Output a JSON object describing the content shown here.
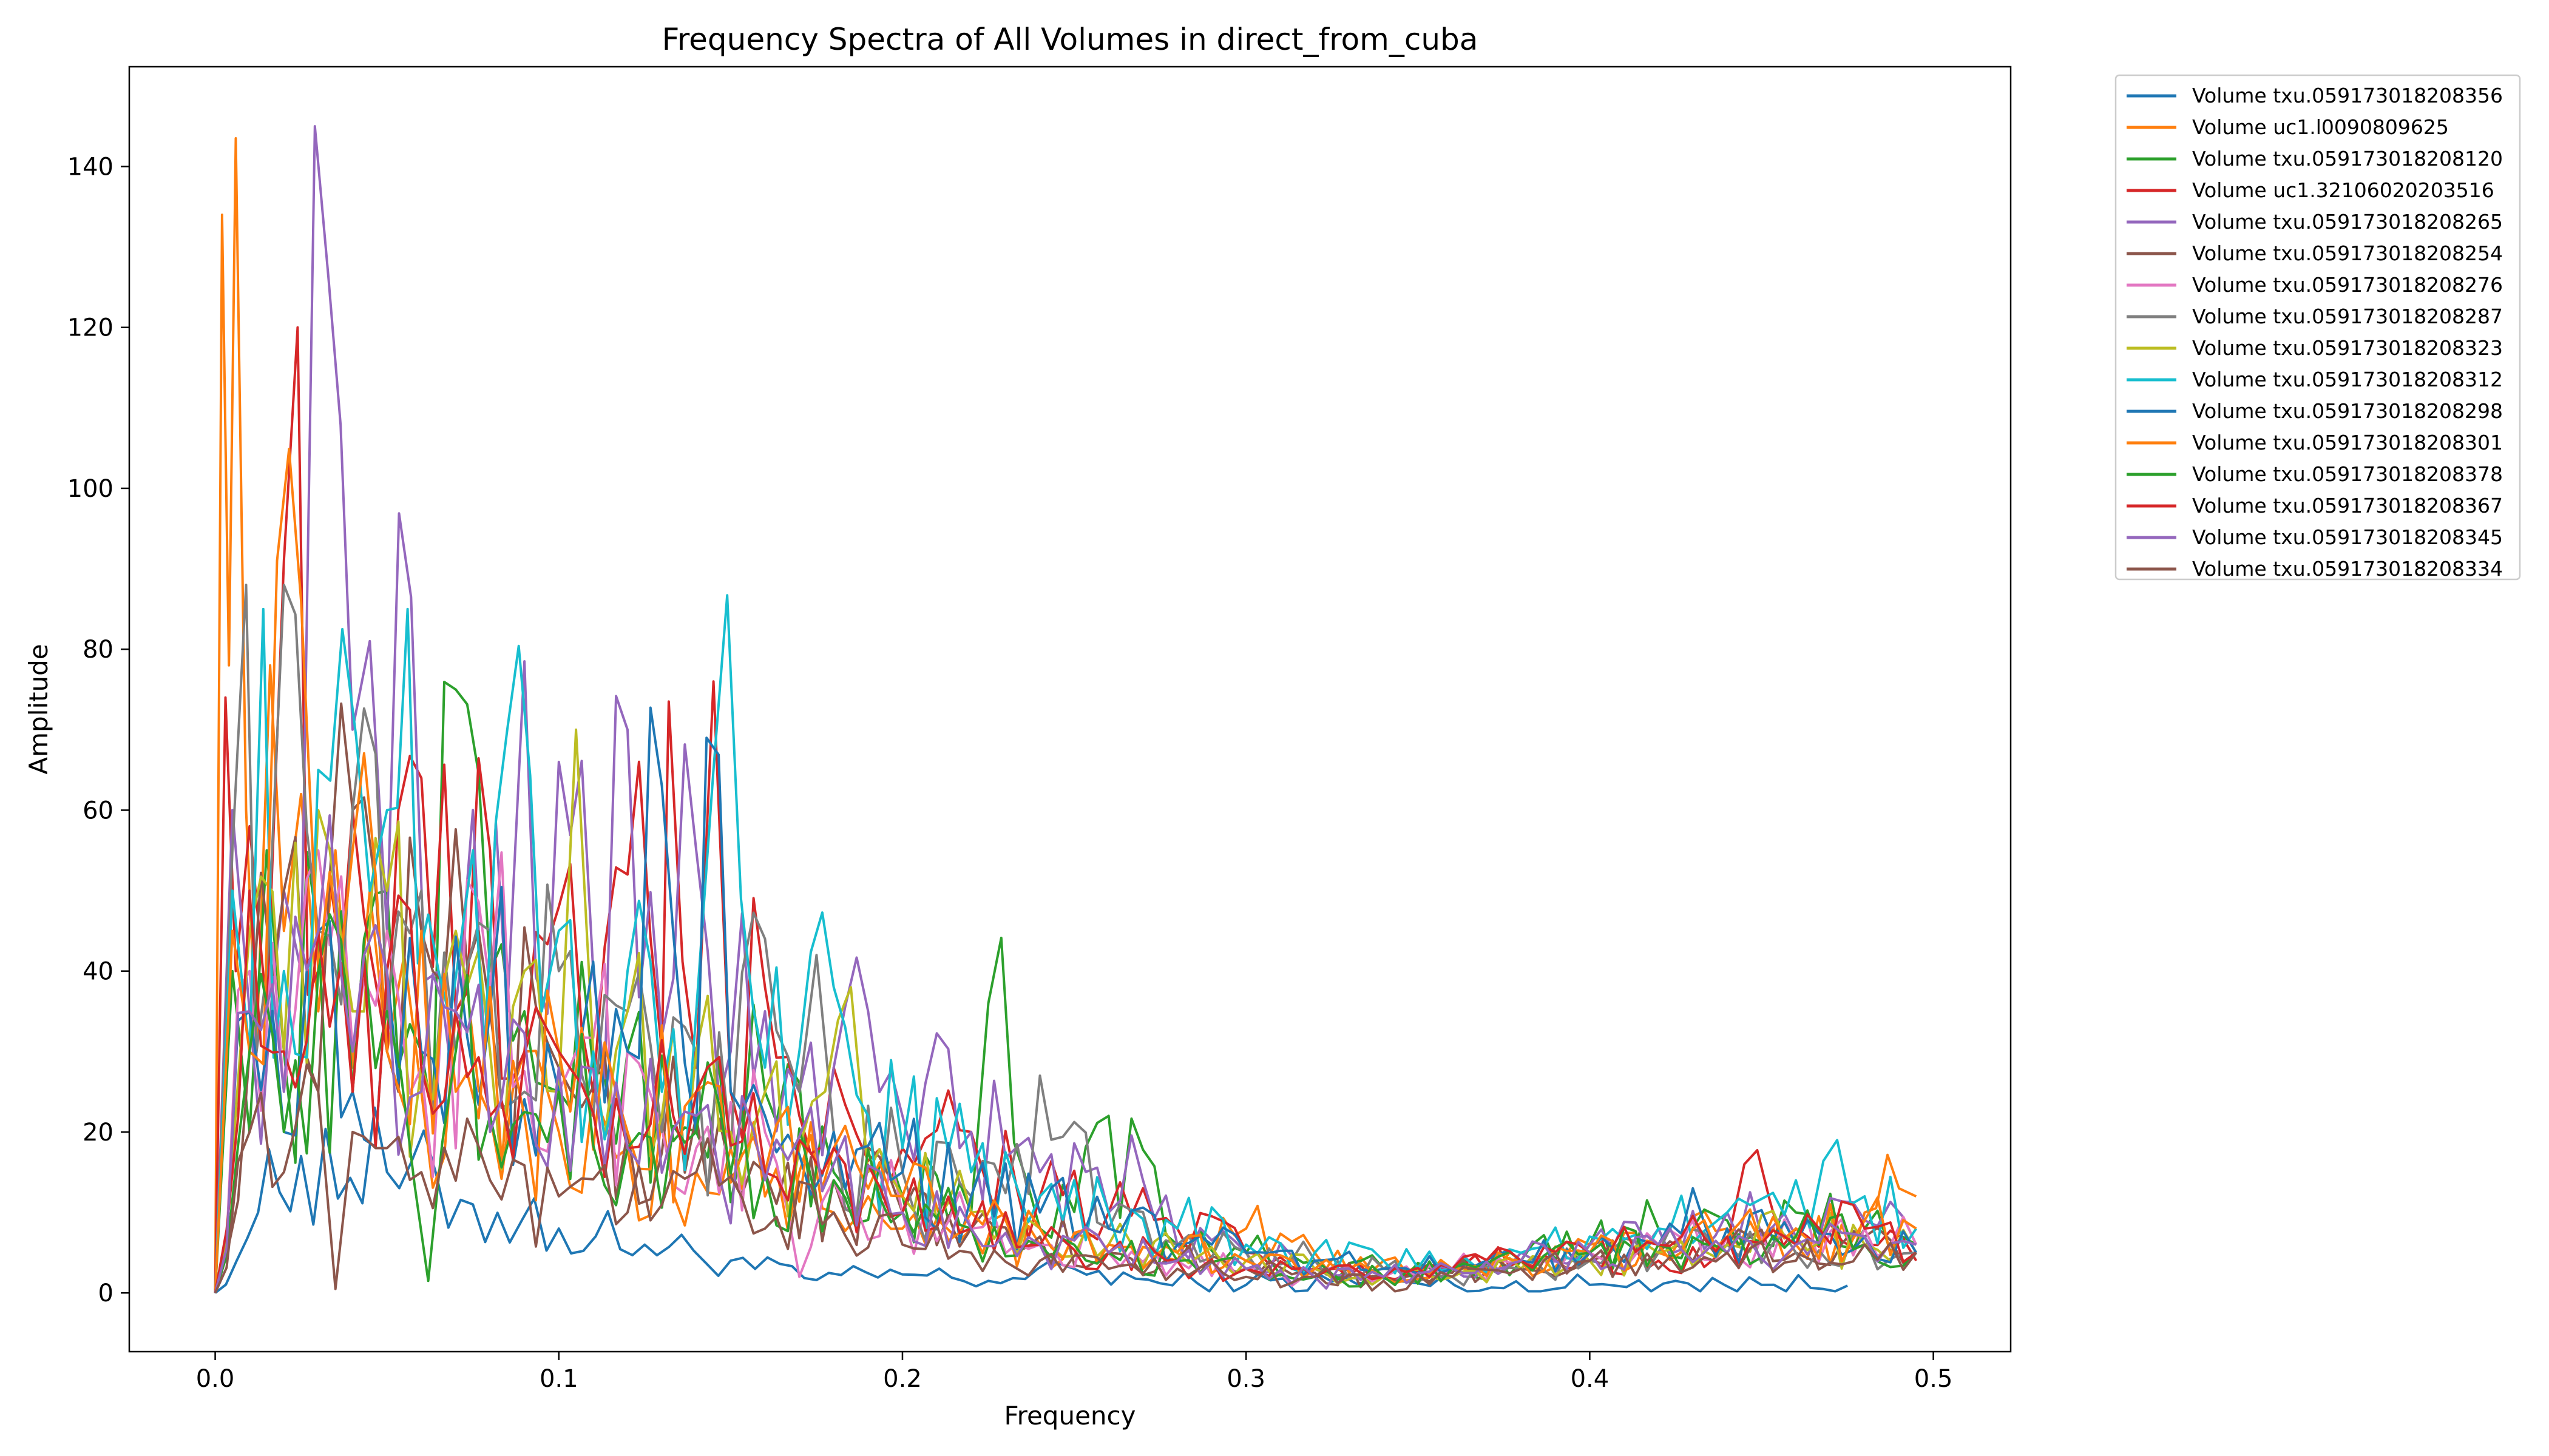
{
  "chart_data": {
    "type": "line",
    "title": "Frequency Spectra of All Volumes in direct_from_cuba",
    "xlabel": "Frequency",
    "ylabel": "Amplitude",
    "xlim": [
      -0.025,
      0.5225
    ],
    "ylim": [
      -7.3,
      152.4
    ],
    "x_ticks": [
      0.0,
      0.1,
      0.2,
      0.3,
      0.4,
      0.5
    ],
    "x_tick_labels": [
      "0.0",
      "0.1",
      "0.2",
      "0.3",
      "0.4",
      "0.5"
    ],
    "y_ticks": [
      0,
      20,
      40,
      60,
      80,
      100,
      120,
      140
    ],
    "y_tick_labels": [
      "0",
      "20",
      "40",
      "60",
      "80",
      "100",
      "120",
      "140"
    ],
    "grid": false,
    "legend_position": "outside-top-right",
    "series": [
      {
        "name": "Volume txu.059173018208356",
        "color": "#1f77b4",
        "x": [
          0.0,
          0.0125,
          0.025,
          0.05,
          0.075,
          0.1,
          0.125,
          0.15,
          0.175,
          0.2,
          0.225,
          0.25,
          0.275,
          0.3,
          0.325,
          0.35,
          0.375,
          0.4,
          0.425,
          0.45,
          0.475
        ],
        "values": [
          0,
          10,
          17,
          15,
          11,
          8,
          6,
          4,
          1.6,
          2.3,
          1.5,
          3,
          1.2,
          1.0,
          1.4,
          1.2,
          0.6,
          1.0,
          1.5,
          1.0,
          0.9
        ]
      },
      {
        "name": "Volume uc1.l0090809625",
        "color": "#ff7f0e",
        "x": [
          0.0,
          0.002,
          0.004,
          0.006,
          0.009,
          0.012,
          0.016,
          0.02,
          0.025,
          0.03,
          0.035,
          0.04,
          0.045,
          0.05,
          0.055,
          0.06,
          0.07,
          0.08,
          0.09,
          0.1,
          0.11,
          0.12,
          0.13,
          0.14,
          0.15,
          0.16,
          0.17,
          0.18,
          0.19,
          0.2,
          0.22,
          0.24,
          0.26,
          0.28,
          0.3,
          0.32,
          0.34,
          0.36,
          0.38,
          0.4,
          0.42,
          0.44,
          0.46,
          0.48,
          0.49,
          0.495
        ],
        "values": [
          0,
          134,
          78,
          143.5,
          60,
          30,
          78,
          45,
          62,
          35,
          55,
          28,
          50,
          30,
          42,
          25,
          35,
          22,
          30,
          20,
          25,
          18,
          22,
          15,
          18,
          12,
          15,
          10,
          12,
          8,
          8,
          6,
          5,
          4,
          8,
          5,
          4,
          3,
          4,
          6,
          5,
          8,
          6,
          10,
          13,
          12
        ]
      },
      {
        "name": "Volume txu.059173018208120",
        "color": "#2ca02c",
        "x": [
          0.0,
          0.005,
          0.01,
          0.015,
          0.02,
          0.03,
          0.04,
          0.05,
          0.06,
          0.07,
          0.08,
          0.09,
          0.1,
          0.12,
          0.14,
          0.16,
          0.18,
          0.2,
          0.22,
          0.225,
          0.24,
          0.26,
          0.28,
          0.3,
          0.32,
          0.34,
          0.36,
          0.38,
          0.4,
          0.42,
          0.44,
          0.46,
          0.48,
          0.495
        ],
        "values": [
          0,
          40,
          20,
          55,
          30,
          45,
          25,
          50,
          30,
          75,
          40,
          35,
          25,
          30,
          20,
          25,
          15,
          12,
          10,
          36,
          8,
          22,
          6,
          5,
          4,
          3,
          3,
          4,
          6,
          8,
          9,
          10,
          8,
          6
        ]
      },
      {
        "name": "Volume uc1.32106020203516",
        "color": "#d62728",
        "x": [
          0.0,
          0.003,
          0.006,
          0.01,
          0.015,
          0.02,
          0.024,
          0.03,
          0.04,
          0.05,
          0.06,
          0.07,
          0.08,
          0.09,
          0.1,
          0.11,
          0.12,
          0.13,
          0.132,
          0.14,
          0.145,
          0.15,
          0.16,
          0.17,
          0.18,
          0.2,
          0.22,
          0.24,
          0.26,
          0.28,
          0.3,
          0.32,
          0.34,
          0.36,
          0.38,
          0.4,
          0.42,
          0.44,
          0.445,
          0.46,
          0.48,
          0.495
        ],
        "values": [
          0,
          74,
          40,
          58,
          35,
          91,
          120,
          40,
          60,
          30,
          64,
          35,
          55,
          30,
          48,
          25,
          52,
          30,
          73.5,
          28,
          76,
          25,
          38,
          22,
          28,
          18,
          20,
          12,
          10,
          8,
          5,
          3,
          2,
          3,
          4,
          5,
          4,
          6,
          16,
          8,
          6,
          4
        ]
      },
      {
        "name": "Volume txu.059173018208265",
        "color": "#9467bd",
        "x": [
          0.0,
          0.005,
          0.01,
          0.02,
          0.025,
          0.029,
          0.033,
          0.04,
          0.045,
          0.05,
          0.057,
          0.065,
          0.075,
          0.085,
          0.09,
          0.1,
          0.11,
          0.12,
          0.13,
          0.14,
          0.15,
          0.16,
          0.17,
          0.18,
          0.19,
          0.2,
          0.22,
          0.24,
          0.26,
          0.27,
          0.28,
          0.3,
          0.32,
          0.34,
          0.36,
          0.38,
          0.4,
          0.42,
          0.44,
          0.46,
          0.48,
          0.495
        ],
        "values": [
          0,
          60,
          35,
          50,
          40,
          145,
          126,
          70,
          81,
          45,
          86.5,
          40,
          60,
          35,
          78.5,
          66,
          40,
          70,
          32,
          55,
          30,
          35,
          25,
          28,
          35,
          22,
          20,
          15,
          10,
          14,
          6,
          5,
          3,
          2,
          3,
          5,
          6,
          8,
          10,
          7,
          9,
          6
        ]
      },
      {
        "name": "Volume txu.059173018208254",
        "color": "#8c564b",
        "x": [
          0.0,
          0.01,
          0.02,
          0.03,
          0.04,
          0.05,
          0.06,
          0.08,
          0.1,
          0.12,
          0.14,
          0.16,
          0.18,
          0.2,
          0.22,
          0.24,
          0.26,
          0.28,
          0.3,
          0.32,
          0.34,
          0.36,
          0.38,
          0.4,
          0.42,
          0.44,
          0.46,
          0.48,
          0.495
        ],
        "values": [
          0,
          30,
          50,
          25,
          60,
          30,
          45,
          35,
          28,
          20,
          22,
          15,
          14,
          10,
          8,
          7,
          5,
          4,
          3,
          2.5,
          2,
          2.5,
          3,
          4,
          5,
          6,
          5,
          7,
          5
        ]
      },
      {
        "name": "Volume txu.059173018208276",
        "color": "#e377c2",
        "x": [
          0.0,
          0.01,
          0.02,
          0.03,
          0.04,
          0.05,
          0.06,
          0.08,
          0.1,
          0.12,
          0.14,
          0.16,
          0.17,
          0.18,
          0.2,
          0.22,
          0.24,
          0.26,
          0.28,
          0.3,
          0.32,
          0.34,
          0.36,
          0.38,
          0.4,
          0.42,
          0.44,
          0.46,
          0.48,
          0.495
        ],
        "values": [
          0,
          40,
          25,
          55,
          30,
          45,
          28,
          38,
          25,
          30,
          18,
          20,
          2,
          14,
          10,
          8,
          6,
          5,
          4,
          3,
          2,
          2,
          3,
          4,
          5,
          6,
          7,
          6,
          8,
          6
        ]
      },
      {
        "name": "Volume txu.059173018208287",
        "color": "#7f7f7f",
        "x": [
          0.0,
          0.005,
          0.009,
          0.015,
          0.02,
          0.03,
          0.04,
          0.05,
          0.06,
          0.07,
          0.08,
          0.09,
          0.1,
          0.11,
          0.12,
          0.13,
          0.14,
          0.15,
          0.16,
          0.17,
          0.175,
          0.18,
          0.2,
          0.22,
          0.24,
          0.26,
          0.28,
          0.3,
          0.32,
          0.34,
          0.36,
          0.38,
          0.4,
          0.42,
          0.44,
          0.46,
          0.48,
          0.495
        ],
        "values": [
          0,
          55,
          88,
          40,
          88,
          45,
          60,
          35,
          50,
          30,
          45,
          25,
          40,
          22,
          35,
          20,
          30,
          18,
          44,
          25,
          42,
          20,
          15,
          12,
          27,
          8,
          6,
          5,
          4,
          3,
          2,
          3,
          4,
          5,
          6,
          5,
          7,
          5
        ]
      },
      {
        "name": "Volume txu.059173018208323",
        "color": "#bcbd22",
        "x": [
          0.0,
          0.01,
          0.02,
          0.03,
          0.04,
          0.05,
          0.06,
          0.07,
          0.08,
          0.09,
          0.1,
          0.105,
          0.11,
          0.12,
          0.13,
          0.14,
          0.15,
          0.16,
          0.17,
          0.185,
          0.19,
          0.2,
          0.22,
          0.24,
          0.26,
          0.28,
          0.3,
          0.32,
          0.34,
          0.36,
          0.38,
          0.4,
          0.42,
          0.44,
          0.46,
          0.48,
          0.495
        ],
        "values": [
          0,
          45,
          30,
          60,
          35,
          50,
          28,
          45,
          30,
          40,
          25,
          70,
          30,
          35,
          22,
          30,
          20,
          25,
          18,
          38,
          15,
          12,
          10,
          8,
          6,
          5,
          4,
          3,
          2,
          2,
          3,
          4,
          5,
          6,
          7,
          6,
          5
        ]
      },
      {
        "name": "Volume txu.059173018208312",
        "color": "#17becf",
        "x": [
          0.0,
          0.005,
          0.01,
          0.014,
          0.02,
          0.03,
          0.037,
          0.045,
          0.05,
          0.056,
          0.065,
          0.075,
          0.085,
          0.095,
          0.1,
          0.11,
          0.12,
          0.13,
          0.14,
          0.145,
          0.153,
          0.16,
          0.17,
          0.18,
          0.19,
          0.2,
          0.22,
          0.24,
          0.26,
          0.28,
          0.3,
          0.32,
          0.34,
          0.36,
          0.38,
          0.4,
          0.42,
          0.44,
          0.46,
          0.472,
          0.48,
          0.495
        ],
        "values": [
          0,
          50,
          30,
          85,
          40,
          65,
          82.5,
          50,
          60,
          85,
          40,
          55,
          70,
          35,
          45,
          30,
          40,
          25,
          35,
          65,
          49,
          28,
          30,
          38,
          22,
          18,
          15,
          12,
          10,
          8,
          6,
          5,
          4,
          3,
          5,
          7,
          8,
          10,
          14,
          19,
          12,
          8
        ]
      },
      {
        "name": "Volume txu.059173018208298",
        "color": "#1f77b4",
        "x": [
          0.0,
          0.01,
          0.02,
          0.03,
          0.04,
          0.05,
          0.06,
          0.08,
          0.1,
          0.12,
          0.13,
          0.14,
          0.143,
          0.15,
          0.16,
          0.18,
          0.2,
          0.22,
          0.24,
          0.26,
          0.28,
          0.3,
          0.32,
          0.34,
          0.36,
          0.38,
          0.4,
          0.42,
          0.43,
          0.44,
          0.46,
          0.48,
          0.495
        ],
        "values": [
          0,
          35,
          20,
          45,
          25,
          40,
          30,
          35,
          25,
          30,
          63,
          20,
          69,
          25,
          22,
          20,
          15,
          12,
          10,
          8,
          6,
          5,
          4,
          3,
          3,
          4,
          5,
          6,
          13,
          8,
          6,
          7,
          5
        ]
      },
      {
        "name": "Volume txu.059173018208301",
        "color": "#ff7f0e",
        "x": [
          0.0,
          0.005,
          0.01,
          0.018,
          0.025,
          0.03,
          0.04,
          0.05,
          0.06,
          0.07,
          0.08,
          0.09,
          0.1,
          0.12,
          0.14,
          0.16,
          0.18,
          0.2,
          0.22,
          0.24,
          0.26,
          0.28,
          0.3,
          0.32,
          0.34,
          0.36,
          0.38,
          0.4,
          0.42,
          0.44,
          0.46,
          0.48,
          0.495
        ],
        "values": [
          0,
          45,
          30,
          91,
          86,
          40,
          55,
          30,
          45,
          25,
          38,
          22,
          30,
          20,
          25,
          15,
          18,
          12,
          10,
          8,
          6,
          5,
          4,
          3,
          2,
          3,
          4,
          5,
          6,
          7,
          8,
          9,
          8
        ]
      },
      {
        "name": "Volume txu.059173018208378",
        "color": "#2ca02c",
        "x": [
          0.0,
          0.01,
          0.02,
          0.03,
          0.04,
          0.05,
          0.062,
          0.07,
          0.08,
          0.1,
          0.12,
          0.14,
          0.16,
          0.18,
          0.2,
          0.22,
          0.24,
          0.26,
          0.28,
          0.3,
          0.32,
          0.34,
          0.36,
          0.38,
          0.4,
          0.42,
          0.44,
          0.46,
          0.48,
          0.495
        ],
        "values": [
          0,
          30,
          20,
          40,
          25,
          35,
          1.5,
          30,
          22,
          25,
          18,
          20,
          15,
          14,
          10,
          8,
          6,
          5,
          4,
          3,
          2,
          2,
          3,
          4,
          5,
          6,
          5,
          7,
          6,
          5
        ]
      },
      {
        "name": "Volume txu.059173018208367",
        "color": "#d62728",
        "x": [
          0.0,
          0.01,
          0.02,
          0.03,
          0.04,
          0.05,
          0.06,
          0.07,
          0.08,
          0.1,
          0.12,
          0.14,
          0.16,
          0.18,
          0.2,
          0.22,
          0.24,
          0.26,
          0.28,
          0.3,
          0.32,
          0.34,
          0.36,
          0.38,
          0.4,
          0.42,
          0.44,
          0.46,
          0.48,
          0.495
        ],
        "values": [
          0,
          50,
          30,
          45,
          25,
          40,
          28,
          35,
          22,
          30,
          18,
          25,
          15,
          18,
          10,
          8,
          6,
          5,
          4,
          3,
          2,
          2,
          3,
          4,
          5,
          6,
          7,
          6,
          8,
          5
        ]
      },
      {
        "name": "Volume txu.059173018208345",
        "color": "#9467bd",
        "x": [
          0.0,
          0.01,
          0.02,
          0.03,
          0.04,
          0.05,
          0.06,
          0.07,
          0.08,
          0.1,
          0.12,
          0.14,
          0.16,
          0.18,
          0.2,
          0.22,
          0.24,
          0.26,
          0.28,
          0.3,
          0.32,
          0.34,
          0.36,
          0.38,
          0.4,
          0.42,
          0.44,
          0.46,
          0.48,
          0.495
        ],
        "values": [
          0,
          35,
          25,
          45,
          30,
          40,
          25,
          35,
          20,
          28,
          18,
          22,
          14,
          16,
          10,
          8,
          6,
          5,
          4,
          3,
          2,
          2,
          3,
          4,
          5,
          6,
          5,
          6,
          7,
          6
        ]
      },
      {
        "name": "Volume txu.059173018208334",
        "color": "#8c564b",
        "x": [
          0.0,
          0.01,
          0.02,
          0.03,
          0.035,
          0.04,
          0.05,
          0.06,
          0.08,
          0.1,
          0.12,
          0.14,
          0.16,
          0.18,
          0.2,
          0.22,
          0.24,
          0.26,
          0.28,
          0.3,
          0.32,
          0.34,
          0.36,
          0.38,
          0.4,
          0.42,
          0.44,
          0.46,
          0.48,
          0.495
        ],
        "values": [
          0,
          20,
          15,
          25,
          0.5,
          20,
          18,
          15,
          14,
          12,
          10,
          15,
          8,
          10,
          6,
          5,
          4,
          3,
          3,
          2,
          2,
          1.5,
          2,
          3,
          4,
          3,
          5,
          4,
          6,
          5
        ]
      }
    ]
  }
}
